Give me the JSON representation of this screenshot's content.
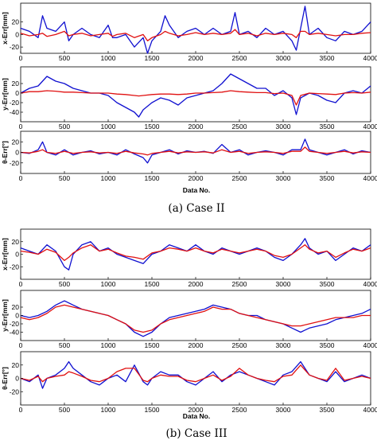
{
  "colors": {
    "blue": "#1010d0",
    "red": "#e01010",
    "axis": "#000000"
  },
  "captions": [
    "(a)  Case II",
    "(b)  Case III"
  ],
  "xticks": [
    "0",
    "500",
    "1000",
    "1500",
    "2000",
    "2500",
    "3000",
    "3500",
    "4000"
  ],
  "xlabel": "Data No.",
  "chart_data": [
    {
      "type": "line",
      "group": "(a) Case II",
      "ylabel": "x-Err[mm]",
      "xlim": [
        0,
        4000
      ],
      "ylim": [
        -30,
        50
      ],
      "yticks": [
        20,
        0,
        -20
      ],
      "x": [
        0,
        100,
        200,
        250,
        300,
        400,
        500,
        550,
        600,
        700,
        800,
        900,
        1000,
        1050,
        1100,
        1200,
        1300,
        1400,
        1450,
        1500,
        1600,
        1650,
        1700,
        1800,
        1900,
        2000,
        2100,
        2200,
        2300,
        2400,
        2450,
        2500,
        2600,
        2700,
        2800,
        2900,
        3000,
        3100,
        3150,
        3200,
        3250,
        3300,
        3400,
        3500,
        3600,
        3700,
        3800,
        3900,
        4000
      ],
      "series": [
        {
          "color": "blue",
          "values": [
            10,
            5,
            -5,
            30,
            10,
            5,
            20,
            -10,
            0,
            10,
            0,
            -5,
            15,
            -5,
            -5,
            0,
            -20,
            -5,
            -30,
            -10,
            5,
            30,
            15,
            -5,
            5,
            10,
            0,
            10,
            0,
            5,
            35,
            0,
            5,
            -5,
            10,
            0,
            5,
            -10,
            -25,
            10,
            45,
            0,
            10,
            -5,
            -10,
            5,
            0,
            5,
            20
          ]
        },
        {
          "color": "red",
          "values": [
            2,
            -2,
            0,
            2,
            -3,
            0,
            5,
            -2,
            0,
            2,
            -2,
            0,
            2,
            -3,
            0,
            2,
            -5,
            0,
            -10,
            -5,
            0,
            5,
            2,
            -2,
            0,
            3,
            0,
            2,
            0,
            2,
            8,
            0,
            2,
            -2,
            2,
            0,
            2,
            0,
            -5,
            5,
            5,
            0,
            2,
            0,
            -2,
            0,
            0,
            2,
            3
          ]
        }
      ]
    },
    {
      "type": "line",
      "group": "(a) Case II",
      "ylabel": "y-Err[mm]",
      "xlim": [
        0,
        4000
      ],
      "ylim": [
        -60,
        55
      ],
      "yticks": [
        20,
        0,
        -20,
        -40
      ],
      "x": [
        0,
        100,
        200,
        300,
        400,
        500,
        600,
        700,
        800,
        900,
        1000,
        1100,
        1200,
        1300,
        1350,
        1400,
        1500,
        1600,
        1700,
        1800,
        1900,
        2000,
        2100,
        2200,
        2300,
        2400,
        2500,
        2600,
        2700,
        2800,
        2900,
        3000,
        3100,
        3150,
        3200,
        3300,
        3400,
        3500,
        3600,
        3700,
        3800,
        3900,
        4000
      ],
      "series": [
        {
          "color": "blue",
          "values": [
            0,
            10,
            15,
            35,
            25,
            20,
            10,
            5,
            0,
            0,
            -5,
            -20,
            -30,
            -40,
            -50,
            -35,
            -20,
            -10,
            -15,
            -25,
            -10,
            -5,
            0,
            5,
            20,
            40,
            30,
            20,
            10,
            10,
            -5,
            5,
            -10,
            -45,
            -10,
            0,
            -5,
            -15,
            -20,
            0,
            5,
            0,
            15
          ]
        },
        {
          "color": "red",
          "values": [
            0,
            3,
            3,
            5,
            4,
            2,
            2,
            1,
            0,
            0,
            0,
            -2,
            -3,
            -5,
            -6,
            -5,
            -3,
            -2,
            -2,
            -3,
            -2,
            0,
            0,
            1,
            2,
            5,
            3,
            2,
            1,
            1,
            -1,
            0,
            -5,
            -25,
            -5,
            0,
            -1,
            -2,
            -3,
            0,
            1,
            0,
            2
          ]
        }
      ]
    },
    {
      "type": "line",
      "group": "(a) Case II",
      "ylabel": "θ-Err[°]",
      "xlim": [
        0,
        4000
      ],
      "ylim": [
        -40,
        40
      ],
      "yticks": [
        20,
        0,
        -20
      ],
      "x": [
        0,
        100,
        200,
        250,
        300,
        400,
        500,
        600,
        700,
        800,
        900,
        1000,
        1100,
        1200,
        1300,
        1400,
        1450,
        1500,
        1600,
        1700,
        1800,
        1900,
        2000,
        2100,
        2200,
        2300,
        2400,
        2500,
        2600,
        2700,
        2800,
        2900,
        3000,
        3100,
        3200,
        3250,
        3300,
        3400,
        3500,
        3600,
        3700,
        3800,
        3900,
        4000
      ],
      "series": [
        {
          "color": "blue",
          "values": [
            0,
            -2,
            5,
            20,
            0,
            -5,
            5,
            -5,
            0,
            3,
            -3,
            0,
            -5,
            5,
            -3,
            -10,
            -20,
            -5,
            0,
            5,
            -3,
            3,
            0,
            2,
            -2,
            15,
            0,
            5,
            -5,
            0,
            3,
            0,
            -5,
            5,
            5,
            25,
            5,
            0,
            -5,
            0,
            5,
            -3,
            3,
            0
          ]
        },
        {
          "color": "red",
          "values": [
            0,
            -1,
            2,
            5,
            0,
            -2,
            2,
            -2,
            0,
            1,
            -1,
            0,
            -2,
            2,
            -1,
            -3,
            -5,
            -2,
            0,
            2,
            -1,
            1,
            0,
            1,
            -1,
            5,
            0,
            2,
            -2,
            0,
            1,
            0,
            -2,
            2,
            2,
            10,
            2,
            0,
            -2,
            0,
            2,
            -1,
            1,
            0
          ]
        }
      ]
    },
    {
      "type": "line",
      "group": "(b) Case III",
      "ylabel": "x-Err[mm]",
      "xlim": [
        0,
        4000
      ],
      "ylim": [
        -40,
        40
      ],
      "yticks": [
        20,
        0,
        -20
      ],
      "x": [
        0,
        100,
        200,
        300,
        400,
        500,
        550,
        600,
        700,
        800,
        900,
        1000,
        1100,
        1200,
        1300,
        1400,
        1500,
        1600,
        1700,
        1800,
        1900,
        2000,
        2100,
        2200,
        2300,
        2400,
        2500,
        2600,
        2700,
        2800,
        2900,
        3000,
        3100,
        3200,
        3250,
        3300,
        3400,
        3500,
        3600,
        3700,
        3800,
        3900,
        4000
      ],
      "series": [
        {
          "color": "blue",
          "values": [
            10,
            5,
            0,
            15,
            5,
            -20,
            -25,
            0,
            15,
            20,
            5,
            10,
            0,
            -5,
            -10,
            -15,
            0,
            5,
            15,
            10,
            5,
            15,
            5,
            0,
            10,
            5,
            0,
            5,
            10,
            5,
            -5,
            -10,
            0,
            15,
            25,
            10,
            0,
            5,
            -10,
            0,
            10,
            5,
            15
          ]
        },
        {
          "color": "red",
          "values": [
            5,
            3,
            0,
            8,
            3,
            -10,
            -5,
            2,
            10,
            15,
            5,
            8,
            2,
            -3,
            -5,
            -8,
            2,
            5,
            10,
            8,
            5,
            10,
            5,
            2,
            8,
            5,
            2,
            5,
            8,
            5,
            -2,
            -5,
            0,
            10,
            15,
            8,
            2,
            5,
            -5,
            2,
            8,
            5,
            10
          ]
        }
      ]
    },
    {
      "type": "line",
      "group": "(b) Case III",
      "ylabel": "y-Err[mm]",
      "xlim": [
        0,
        4000
      ],
      "ylim": [
        -60,
        60
      ],
      "yticks": [
        20,
        0,
        -20,
        -40
      ],
      "x": [
        0,
        100,
        200,
        300,
        400,
        500,
        600,
        700,
        800,
        900,
        1000,
        1100,
        1200,
        1300,
        1400,
        1500,
        1600,
        1700,
        1800,
        1900,
        2000,
        2100,
        2200,
        2300,
        2400,
        2500,
        2600,
        2700,
        2800,
        2900,
        3000,
        3100,
        3200,
        3300,
        3400,
        3500,
        3600,
        3700,
        3800,
        3900,
        4000
      ],
      "series": [
        {
          "color": "blue",
          "values": [
            0,
            -5,
            0,
            10,
            25,
            35,
            25,
            15,
            10,
            5,
            0,
            -10,
            -20,
            -40,
            -50,
            -40,
            -20,
            -5,
            0,
            5,
            10,
            15,
            25,
            20,
            15,
            5,
            0,
            0,
            -10,
            -15,
            -20,
            -30,
            -40,
            -30,
            -25,
            -20,
            -10,
            -5,
            0,
            5,
            15
          ]
        },
        {
          "color": "red",
          "values": [
            -5,
            -10,
            -5,
            5,
            20,
            25,
            20,
            15,
            10,
            5,
            0,
            -10,
            -20,
            -35,
            -40,
            -35,
            -20,
            -10,
            -5,
            0,
            5,
            10,
            20,
            15,
            15,
            5,
            0,
            -5,
            -10,
            -15,
            -20,
            -25,
            -25,
            -20,
            -15,
            -10,
            -5,
            -5,
            -5,
            0,
            0
          ]
        }
      ]
    },
    {
      "type": "line",
      "group": "(b) Case III",
      "ylabel": "θ-Err[°]",
      "xlim": [
        0,
        4000
      ],
      "ylim": [
        -40,
        40
      ],
      "yticks": [
        20,
        0,
        -20
      ],
      "x": [
        0,
        100,
        200,
        250,
        300,
        400,
        500,
        550,
        600,
        700,
        800,
        900,
        1000,
        1100,
        1200,
        1300,
        1400,
        1450,
        1500,
        1600,
        1700,
        1800,
        1900,
        2000,
        2100,
        2200,
        2300,
        2400,
        2500,
        2600,
        2700,
        2800,
        2900,
        3000,
        3100,
        3200,
        3300,
        3400,
        3500,
        3600,
        3700,
        3800,
        3900,
        4000
      ],
      "series": [
        {
          "color": "blue",
          "values": [
            0,
            -5,
            5,
            -15,
            0,
            5,
            15,
            25,
            15,
            5,
            -5,
            -10,
            0,
            5,
            -5,
            20,
            -5,
            -10,
            0,
            10,
            5,
            5,
            -5,
            -10,
            0,
            10,
            -5,
            5,
            10,
            5,
            0,
            -5,
            -10,
            5,
            10,
            25,
            5,
            0,
            -5,
            10,
            -5,
            0,
            5,
            0
          ]
        },
        {
          "color": "red",
          "values": [
            0,
            -3,
            3,
            -5,
            0,
            3,
            5,
            10,
            8,
            3,
            -3,
            -5,
            0,
            10,
            15,
            15,
            -3,
            -5,
            0,
            5,
            3,
            3,
            -3,
            -5,
            0,
            5,
            -3,
            3,
            15,
            5,
            0,
            -3,
            -5,
            3,
            5,
            20,
            5,
            0,
            -3,
            15,
            -3,
            0,
            3,
            0
          ]
        }
      ]
    }
  ]
}
